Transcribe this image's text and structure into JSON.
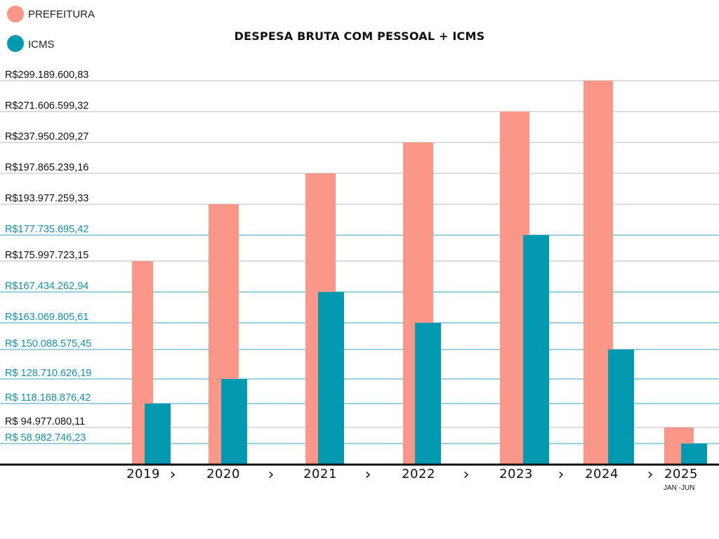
{
  "legend": [
    {
      "label": "PREFEITURA",
      "color": "#FA9789"
    },
    {
      "label": "ICMS",
      "color": "#0399B1"
    }
  ],
  "title": "DESPESA BRUTA COM PESSOAL + ICMS",
  "colors": {
    "prefeitura": "#FA9789",
    "icms": "#0399B1",
    "grid": "#b8b8b8",
    "grid_icms": "#3aa2b4",
    "tick_label": "#111111",
    "tick_label_icms": "#1590a8",
    "axis": "#111111"
  },
  "chart_data": {
    "type": "bar",
    "title": "DESPESA BRUTA COM PESSOAL + ICMS",
    "categories": [
      "2019",
      "2020",
      "2021",
      "2022",
      "2023",
      "2024",
      "2025"
    ],
    "category_note": {
      "2025": "JAN -JUN"
    },
    "series": [
      {
        "name": "PREFEITURA",
        "color": "#FA9789",
        "values": [
          175997723.15,
          193977259.33,
          197865239.16,
          237950209.27,
          271606599.32,
          299189600.83,
          94977080.11
        ]
      },
      {
        "name": "ICMS",
        "color": "#0399B1",
        "values": [
          118168876.42,
          128710626.19,
          167434262.94,
          163069805.61,
          177735695.42,
          150088575.45,
          58982746.23
        ]
      }
    ],
    "y_tick_labels": [
      {
        "value": 299189600.83,
        "label": "R$299.189.600,83",
        "series": "PREFEITURA"
      },
      {
        "value": 271606599.32,
        "label": "R$271.606.599,32",
        "series": "PREFEITURA"
      },
      {
        "value": 237950209.27,
        "label": "R$237.950.209,27",
        "series": "PREFEITURA"
      },
      {
        "value": 197865239.16,
        "label": "R$197.865.239,16",
        "series": "PREFEITURA"
      },
      {
        "value": 193977259.33,
        "label": "R$193.977.259,33",
        "series": "PREFEITURA"
      },
      {
        "value": 177735695.42,
        "label": "R$177.735.695,42",
        "series": "ICMS"
      },
      {
        "value": 175997723.15,
        "label": "R$175.997.723,15",
        "series": "PREFEITURA"
      },
      {
        "value": 167434262.94,
        "label": "R$167.434.262,94",
        "series": "ICMS"
      },
      {
        "value": 163069805.61,
        "label": "R$163.069.805,61",
        "series": "ICMS"
      },
      {
        "value": 150088575.45,
        "label": "R$ 150.088.575,45",
        "series": "ICMS"
      },
      {
        "value": 128710626.19,
        "label": "R$ 128.710.626,19",
        "series": "ICMS"
      },
      {
        "value": 118168876.42,
        "label": "R$ 118.168.876,42",
        "series": "ICMS"
      },
      {
        "value": 94977080.11,
        "label": "R$ 94.977.080,11",
        "series": "PREFEITURA"
      },
      {
        "value": 58982746.23,
        "label": "R$ 58.982.746,23",
        "series": "ICMS"
      }
    ],
    "separator_symbol": "›",
    "grid": true,
    "legend_position": "top-left"
  }
}
